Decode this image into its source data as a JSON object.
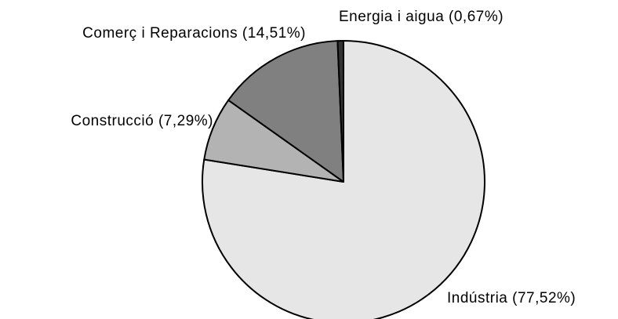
{
  "chart_data": {
    "type": "pie",
    "categories": [
      "Indústria (77,52%)",
      "Construcció (7,29%)",
      "Comerç i Reparacions (14,51%)",
      "Energia i aigua (0,67%)"
    ],
    "values": [
      77.52,
      7.29,
      14.51,
      0.67
    ],
    "colors": [
      "#e6e6e6",
      "#b3b3b3",
      "#808080",
      "#333333"
    ]
  }
}
